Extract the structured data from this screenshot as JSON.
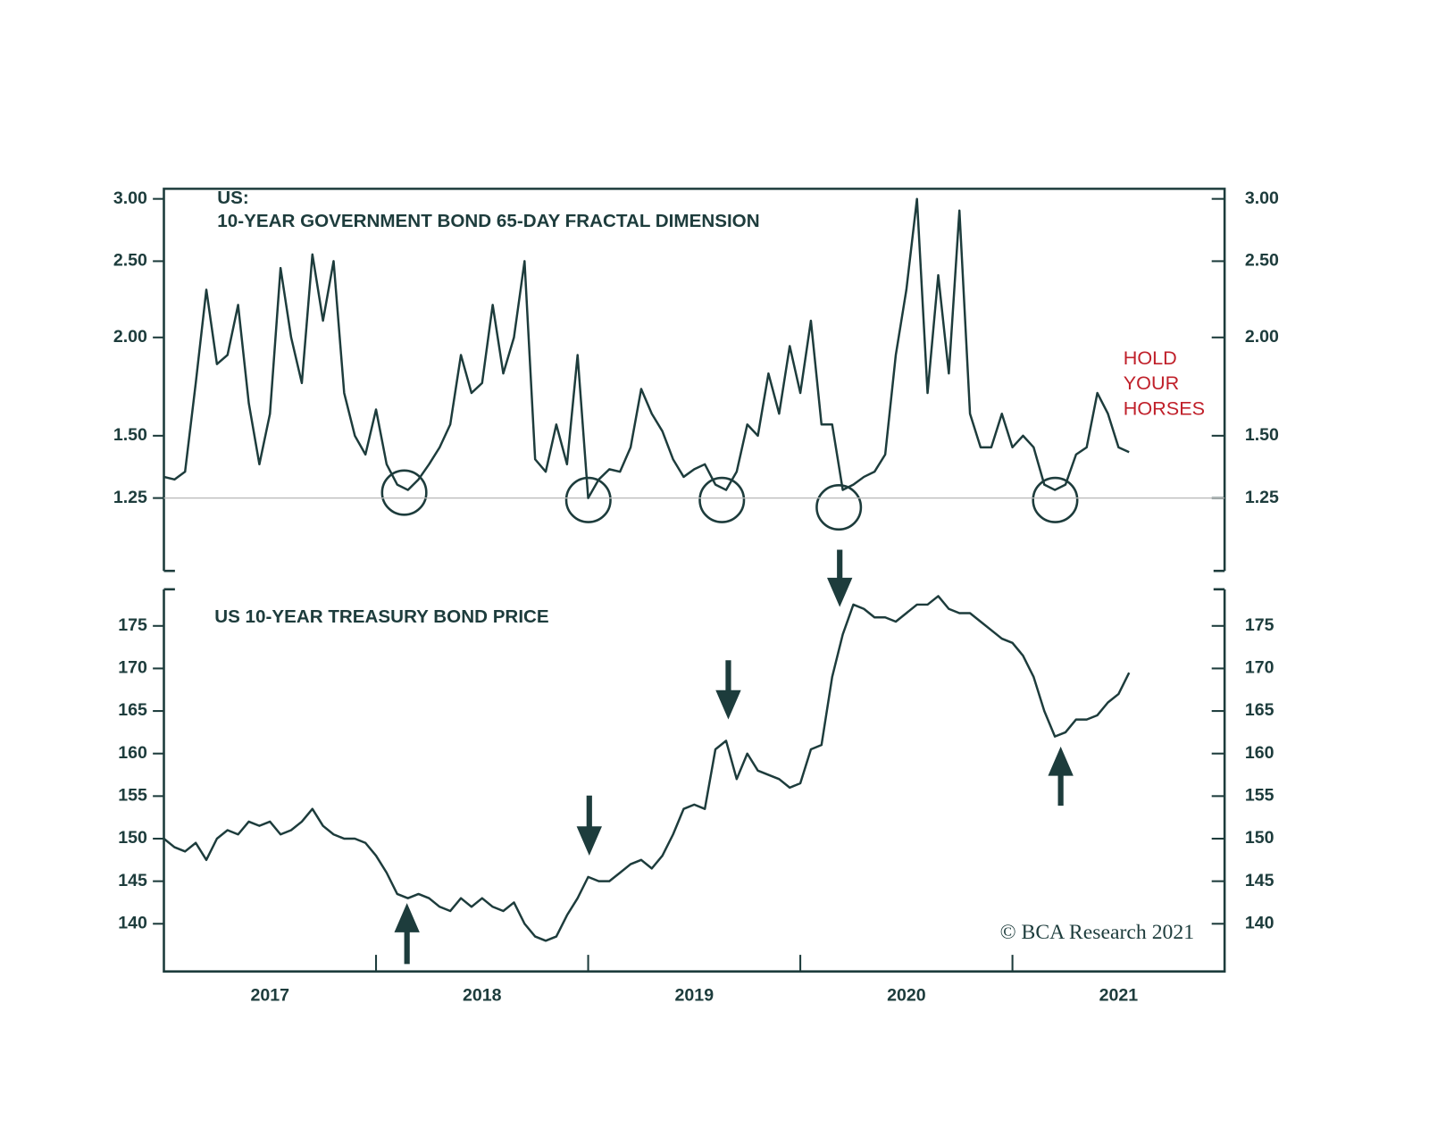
{
  "chart_data": [
    {
      "type": "line",
      "title": "US:",
      "subtitle": "10-YEAR GOVERNMENT BOND 65-DAY FRACTAL DIMENSION",
      "annotation": [
        "HOLD",
        "YOUR",
        "HORSES"
      ],
      "annotation_color": "#c0202a",
      "log_scale": true,
      "hline": 1.25,
      "xlim": [
        2017,
        2022
      ],
      "ylim": [
        1.01,
        3.09
      ],
      "yticks": [
        {
          "value": 1.25,
          "label": "1.25"
        },
        {
          "value": 1.5,
          "label": "1.50"
        },
        {
          "value": 2,
          "label": "2.00"
        },
        {
          "value": 2.5,
          "label": "2.50"
        },
        {
          "value": 3,
          "label": "3.00"
        }
      ],
      "x": [
        2017.0,
        2017.05,
        2017.1,
        2017.15,
        2017.2,
        2017.25,
        2017.3,
        2017.35,
        2017.4,
        2017.45,
        2017.5,
        2017.55,
        2017.6,
        2017.65,
        2017.7,
        2017.75,
        2017.8,
        2017.85,
        2017.9,
        2017.95,
        2018.0,
        2018.05,
        2018.1,
        2018.15,
        2018.2,
        2018.25,
        2018.3,
        2018.35,
        2018.4,
        2018.45,
        2018.5,
        2018.55,
        2018.6,
        2018.65,
        2018.7,
        2018.75,
        2018.8,
        2018.85,
        2018.9,
        2018.95,
        2019.0,
        2019.05,
        2019.1,
        2019.15,
        2019.2,
        2019.25,
        2019.3,
        2019.35,
        2019.4,
        2019.45,
        2019.5,
        2019.55,
        2019.6,
        2019.65,
        2019.7,
        2019.75,
        2019.8,
        2019.85,
        2019.9,
        2019.95,
        2020.0,
        2020.05,
        2020.1,
        2020.15,
        2020.2,
        2020.25,
        2020.3,
        2020.35,
        2020.4,
        2020.45,
        2020.5,
        2020.55,
        2020.6,
        2020.65,
        2020.7,
        2020.75,
        2020.8,
        2020.85,
        2020.9,
        2020.95,
        2021.0,
        2021.05,
        2021.1,
        2021.15,
        2021.2,
        2021.25,
        2021.3,
        2021.35,
        2021.4,
        2021.45,
        2021.5,
        2021.55
      ],
      "series": [
        {
          "color": "#1d3c3c",
          "values": [
            1.33,
            1.32,
            1.35,
            1.75,
            2.3,
            1.85,
            1.9,
            2.2,
            1.65,
            1.38,
            1.6,
            2.45,
            2.0,
            1.75,
            2.55,
            2.1,
            2.5,
            1.7,
            1.5,
            1.42,
            1.62,
            1.38,
            1.3,
            1.28,
            1.32,
            1.38,
            1.45,
            1.55,
            1.9,
            1.7,
            1.75,
            2.2,
            1.8,
            2.0,
            2.5,
            1.4,
            1.35,
            1.55,
            1.38,
            1.9,
            1.25,
            1.32,
            1.36,
            1.35,
            1.45,
            1.72,
            1.6,
            1.52,
            1.4,
            1.33,
            1.36,
            1.38,
            1.3,
            1.28,
            1.35,
            1.55,
            1.5,
            1.8,
            1.6,
            1.95,
            1.7,
            2.1,
            1.55,
            1.55,
            1.28,
            1.3,
            1.33,
            1.35,
            1.42,
            1.9,
            2.3,
            3.0,
            1.7,
            2.4,
            1.8,
            2.9,
            1.6,
            1.45,
            1.45,
            1.6,
            1.45,
            1.5,
            1.45,
            1.3,
            1.28,
            1.3,
            1.42,
            1.45,
            1.7,
            1.6,
            1.45,
            1.43
          ]
        }
      ]
    },
    {
      "type": "line",
      "title": "US 10-YEAR TREASURY BOND PRICE",
      "note": "© BCA Research 2021",
      "xlim": [
        2017,
        2022
      ],
      "ylim": [
        134.4,
        179.3
      ],
      "yticks": [
        140,
        145,
        150,
        155,
        160,
        165,
        170,
        175
      ],
      "xticks": [
        {
          "value": 2017.5,
          "label": "2017"
        },
        {
          "value": 2018.5,
          "label": "2018"
        },
        {
          "value": 2019.5,
          "label": "2019"
        },
        {
          "value": 2020.5,
          "label": "2020"
        },
        {
          "value": 2021.5,
          "label": "2021"
        }
      ],
      "xtick_marks": [
        2018,
        2019,
        2020,
        2021
      ],
      "x": [
        2017.0,
        2017.05,
        2017.1,
        2017.15,
        2017.2,
        2017.25,
        2017.3,
        2017.35,
        2017.4,
        2017.45,
        2017.5,
        2017.55,
        2017.6,
        2017.65,
        2017.7,
        2017.75,
        2017.8,
        2017.85,
        2017.9,
        2017.95,
        2018.0,
        2018.05,
        2018.1,
        2018.15,
        2018.2,
        2018.25,
        2018.3,
        2018.35,
        2018.4,
        2018.45,
        2018.5,
        2018.55,
        2018.6,
        2018.65,
        2018.7,
        2018.75,
        2018.8,
        2018.85,
        2018.9,
        2018.95,
        2019.0,
        2019.05,
        2019.1,
        2019.15,
        2019.2,
        2019.25,
        2019.3,
        2019.35,
        2019.4,
        2019.45,
        2019.5,
        2019.55,
        2019.6,
        2019.65,
        2019.7,
        2019.75,
        2019.8,
        2019.85,
        2019.9,
        2019.95,
        2020.0,
        2020.05,
        2020.1,
        2020.15,
        2020.2,
        2020.25,
        2020.3,
        2020.35,
        2020.4,
        2020.45,
        2020.5,
        2020.55,
        2020.6,
        2020.65,
        2020.7,
        2020.75,
        2020.8,
        2020.85,
        2020.9,
        2020.95,
        2021.0,
        2021.05,
        2021.1,
        2021.15,
        2021.2,
        2021.25,
        2021.3,
        2021.35,
        2021.4,
        2021.45,
        2021.5,
        2021.55
      ],
      "series": [
        {
          "color": "#1d3c3c",
          "values": [
            150,
            149,
            148.5,
            149.5,
            147.5,
            150,
            151,
            150.5,
            152,
            151.5,
            152,
            150.5,
            151,
            152,
            153.5,
            151.5,
            150.5,
            150,
            150,
            149.5,
            148,
            146,
            143.5,
            143,
            143.5,
            143,
            142,
            141.5,
            143,
            142,
            143,
            142,
            141.5,
            142.5,
            140,
            138.5,
            138,
            138.5,
            141,
            143,
            145.5,
            145,
            145,
            146,
            147,
            147.5,
            146.5,
            148,
            150.5,
            153.5,
            154,
            153.5,
            160.5,
            161.5,
            157,
            160,
            158,
            157.5,
            157,
            156,
            156.5,
            160.5,
            161,
            169,
            174,
            177.5,
            177,
            176,
            176,
            175.5,
            176.5,
            177.5,
            177.5,
            178.5,
            177,
            176.5,
            176.5,
            175.5,
            174.5,
            173.5,
            173,
            171.5,
            169,
            165,
            162,
            162.5,
            164,
            164,
            164.5,
            166,
            167,
            169.5
          ]
        }
      ]
    }
  ]
}
